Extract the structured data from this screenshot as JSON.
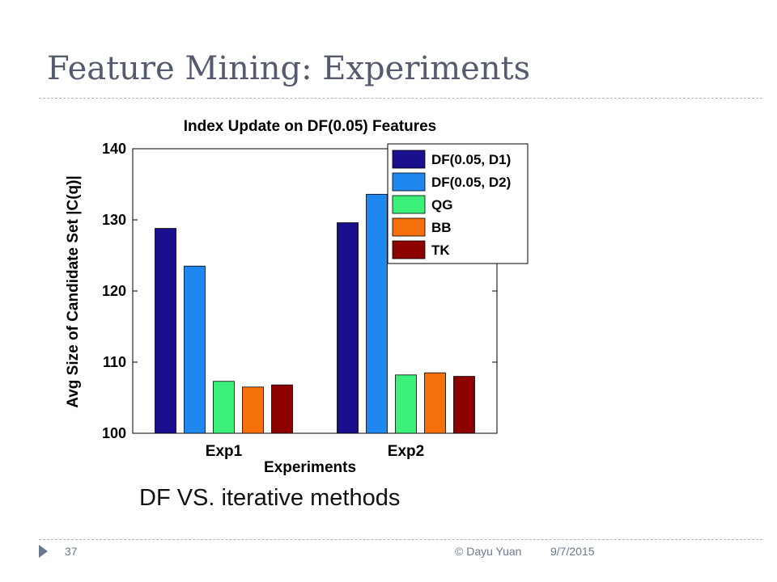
{
  "slide": {
    "title": "Feature Mining: Experiments",
    "caption": "DF VS. iterative methods",
    "footer": {
      "page": "37",
      "author": "© Dayu Yuan",
      "date": "9/7/2015"
    }
  },
  "colors": {
    "title": "#555a6e",
    "rule": "#a8b8c8",
    "footer": "#6b7a8c"
  },
  "chart_data": {
    "type": "bar",
    "title": "Index Update on DF(0.05) Features",
    "xlabel": "Experiments",
    "ylabel": "Avg Size of Candidate Set |C(q)|",
    "ylim": [
      100,
      140
    ],
    "yticks": [
      100,
      110,
      120,
      130,
      140
    ],
    "categories": [
      "Exp1",
      "Exp2"
    ],
    "grid": false,
    "legend_position": "top-right",
    "series": [
      {
        "name": "DF(0.05, D1)",
        "color": "#1a0f8c",
        "values": [
          128.8,
          129.6
        ]
      },
      {
        "name": "DF(0.05, D2)",
        "color": "#1e88f0",
        "values": [
          123.5,
          133.6
        ]
      },
      {
        "name": "QG",
        "color": "#3cf07a",
        "values": [
          107.3,
          108.2
        ]
      },
      {
        "name": "BB",
        "color": "#f5700a",
        "values": [
          106.5,
          108.5
        ]
      },
      {
        "name": "TK",
        "color": "#8c0000",
        "values": [
          106.8,
          108.0
        ]
      }
    ]
  }
}
